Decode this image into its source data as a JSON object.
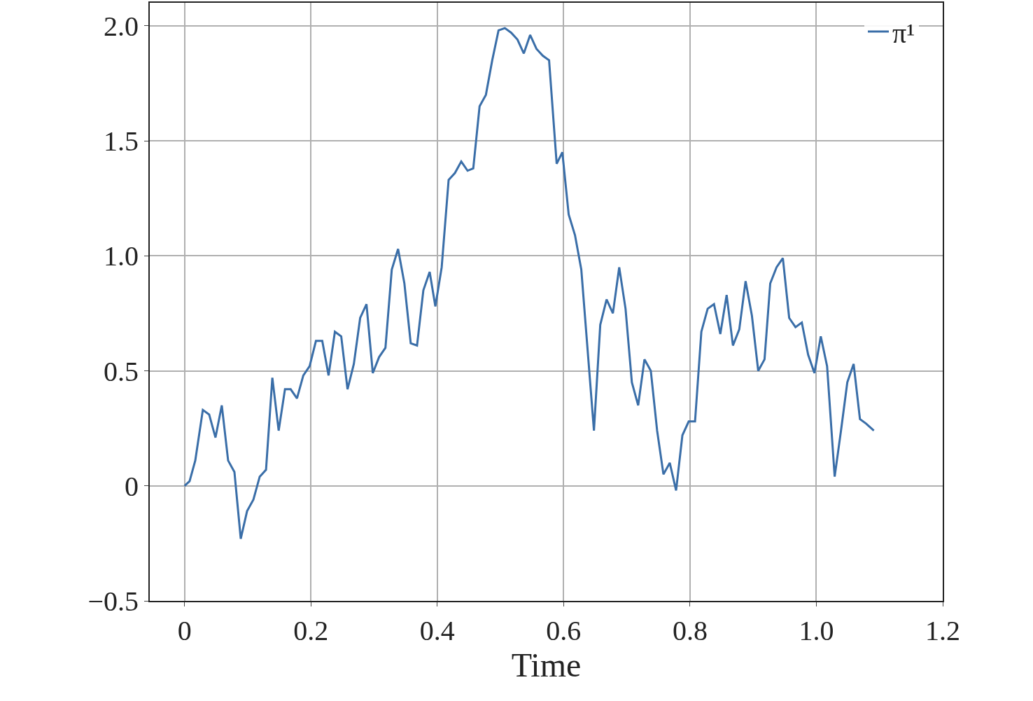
{
  "chart_data": {
    "type": "line",
    "xlabel": "Time",
    "xlim": [
      -0.055,
      1.2
    ],
    "ylim": [
      -0.5,
      2.1
    ],
    "xticks": [
      {
        "value": 0,
        "label": "0"
      },
      0.2,
      0.4,
      0.6,
      0.8,
      {
        "value": 1,
        "label": "1.0"
      },
      1.2
    ],
    "yticks": [
      {
        "value": -0.5,
        "label": "−0.5"
      },
      {
        "value": 0,
        "label": "0"
      },
      0.5,
      {
        "value": 1,
        "label": "1.0"
      },
      1.5,
      {
        "value": 2,
        "label": "2.0"
      }
    ],
    "grid": true,
    "legend": "top right",
    "line_style": "solid",
    "marker": "none",
    "x": [
      0,
      0.008,
      0.017,
      0.029,
      0.039,
      0.049,
      0.059,
      0.069,
      0.079,
      0.089,
      0.099,
      0.109,
      0.119,
      0.129,
      0.139,
      0.149,
      0.159,
      0.168,
      0.178,
      0.188,
      0.198,
      0.208,
      0.218,
      0.228,
      0.238,
      0.248,
      0.258,
      0.268,
      0.278,
      0.288,
      0.298,
      0.308,
      0.318,
      0.328,
      0.338,
      0.348,
      0.358,
      0.368,
      0.378,
      0.388,
      0.397,
      0.407,
      0.418,
      0.428,
      0.438,
      0.448,
      0.457,
      0.467,
      0.477,
      0.487,
      0.497,
      0.507,
      0.517,
      0.527,
      0.537,
      0.547,
      0.557,
      0.567,
      0.577,
      0.589,
      0.598,
      0.608,
      0.618,
      0.628,
      0.638,
      0.648,
      0.658,
      0.668,
      0.678,
      0.688,
      0.698,
      0.708,
      0.718,
      0.728,
      0.738,
      0.748,
      0.758,
      0.768,
      0.778,
      0.788,
      0.798,
      0.808,
      0.818,
      0.828,
      0.838,
      0.848,
      0.858,
      0.868,
      0.878,
      0.888,
      0.898,
      0.908,
      0.918,
      0.927,
      0.937,
      0.947,
      0.957,
      0.967,
      0.977,
      0.987,
      0.997,
      1.007,
      1.017,
      1.029,
      1.039,
      1.049,
      1.059,
      1.069,
      1.079,
      1.091
    ],
    "series": [
      {
        "name": "π¹",
        "color": "#3a6ea8",
        "values": [
          0,
          0.02,
          0.11,
          0.33,
          0.31,
          0.21,
          0.35,
          0.11,
          0.06,
          -0.23,
          -0.11,
          -0.06,
          0.04,
          0.07,
          0.47,
          0.24,
          0.42,
          0.42,
          0.38,
          0.48,
          0.52,
          0.63,
          0.63,
          0.48,
          0.67,
          0.65,
          0.42,
          0.53,
          0.73,
          0.79,
          0.49,
          0.56,
          0.6,
          0.94,
          1.03,
          0.88,
          0.62,
          0.61,
          0.85,
          0.93,
          0.78,
          0.95,
          1.33,
          1.36,
          1.41,
          1.37,
          1.38,
          1.65,
          1.7,
          1.85,
          1.98,
          1.99,
          1.97,
          1.94,
          1.88,
          1.96,
          1.9,
          1.87,
          1.85,
          1.4,
          1.45,
          1.18,
          1.09,
          0.94,
          0.59,
          0.24,
          0.7,
          0.81,
          0.75,
          0.95,
          0.77,
          0.45,
          0.35,
          0.55,
          0.5,
          0.24,
          0.05,
          0.1,
          -0.02,
          0.22,
          0.28,
          0.28,
          0.67,
          0.77,
          0.79,
          0.66,
          0.83,
          0.61,
          0.68,
          0.89,
          0.74,
          0.5,
          0.55,
          0.88,
          0.95,
          0.99,
          0.73,
          0.69,
          0.71,
          0.57,
          0.49,
          0.65,
          0.52,
          0.04,
          0.24,
          0.45,
          0.53,
          0.29,
          0.27,
          0.24
        ]
      }
    ]
  }
}
